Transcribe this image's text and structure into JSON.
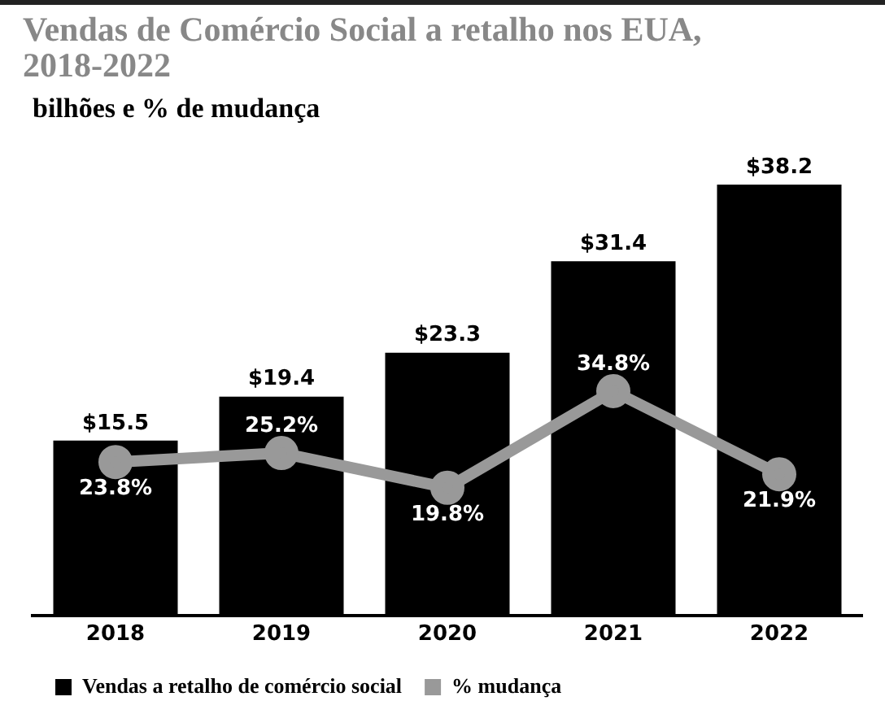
{
  "chart_data": {
    "type": "bar",
    "title": "Vendas de Comércio Social a retalho nos EUA, 2018-2022",
    "subtitle": "bilhões e % de mudança",
    "categories": [
      "2018",
      "2019",
      "2020",
      "2021",
      "2022"
    ],
    "series": [
      {
        "name": "Vendas a retalho de comércio social",
        "color": "#000000",
        "values": [
          15.5,
          19.4,
          23.3,
          31.4,
          38.2
        ],
        "value_labels": [
          "$15.5",
          "$19.4",
          "$23.3",
          "$31.4",
          "$38.2"
        ]
      },
      {
        "name": "% mudança",
        "type": "line",
        "axis": "y2",
        "color": "#999999",
        "values": [
          23.8,
          25.2,
          19.8,
          34.8,
          21.9
        ],
        "value_labels": [
          "23.8%",
          "25.2%",
          "19.8%",
          "34.8%",
          "21.9%"
        ]
      }
    ],
    "grid": false,
    "legend": "bottom",
    "marker": "circle"
  }
}
